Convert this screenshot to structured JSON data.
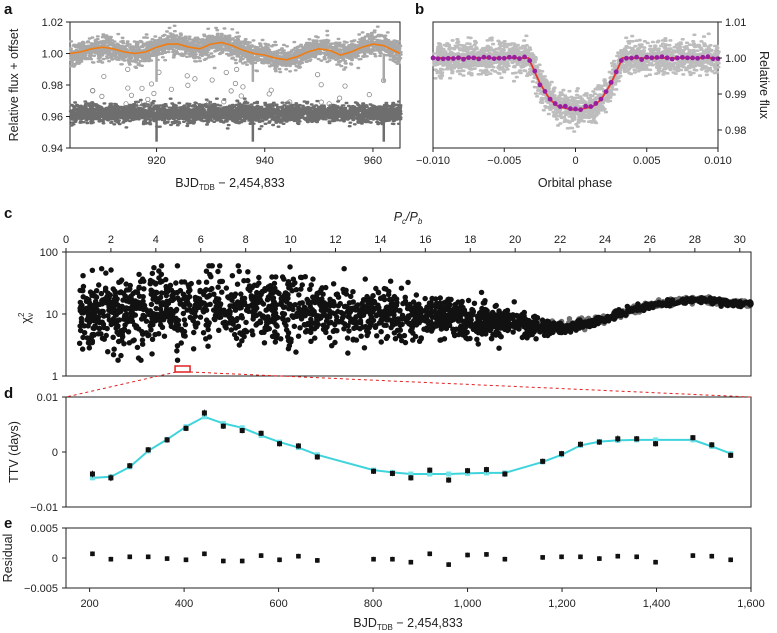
{
  "chart_data": [
    {
      "id": "a",
      "type": "scatter",
      "panel_label": "a",
      "xlabel": "BJD",
      "xlabel_sub": "TDB",
      "xlabel_suffix": " − 2,454,833",
      "ylabel": "Relative flux + offset",
      "xlim": [
        904,
        965
      ],
      "ylim": [
        0.94,
        1.02
      ],
      "xticks": [
        920,
        940,
        960
      ],
      "yticks": [
        0.94,
        0.96,
        0.98,
        1.0,
        1.02
      ],
      "yticklabels": [
        "0.94",
        "0.96",
        "0.98",
        "1.00",
        "1.02"
      ],
      "colors": {
        "data": "#a8a8a8",
        "detrended": "#6e6e6e",
        "model": "#f07c12"
      },
      "series": [
        {
          "values": {
            "x": [
              904,
              906,
              908,
              910,
              912,
              914,
              916,
              918,
              920,
              922,
              924,
              926,
              928,
              930,
              932,
              934,
              936,
              938,
              940,
              942,
              944,
              946,
              948,
              950,
              952,
              954,
              956,
              958,
              960,
              962,
              965
            ],
            "y": [
              1.0,
              1.001,
              1.003,
              1.004,
              1.003,
              1.001,
              1.0,
              1.001,
              1.004,
              1.006,
              1.006,
              1.004,
              1.003,
              1.006,
              1.007,
              1.005,
              1.002,
              1.0,
              0.999,
              0.997,
              0.996,
              0.998,
              1.001,
              1.003,
              1.002,
              0.999,
              1.001,
              1.004,
              1.006,
              1.005,
              1.0
            ]
          }
        },
        {
          "values": {
            "y_level": 0.962
          }
        },
        {
          "values": {
            "transit_times": [
              920.0,
              937.8,
              962.0
            ]
          }
        }
      ]
    },
    {
      "id": "b",
      "type": "line",
      "panel_label": "b",
      "xlabel": "Orbital phase",
      "ylabel": "Relative flux",
      "xlim": [
        -0.01,
        0.01
      ],
      "ylim": [
        0.975,
        1.01
      ],
      "xticks": [
        -0.01,
        -0.005,
        0,
        0.005,
        0.01
      ],
      "xticklabels": [
        "−0.010",
        "−0.005",
        "0",
        "0.005",
        "0.010"
      ],
      "yticks": [
        0.98,
        0.99,
        1.0,
        1.01
      ],
      "yticklabels": [
        "0.98",
        "0.99",
        "1.00",
        "1.01"
      ],
      "colors": {
        "band": "#bdbdbd",
        "model": "#e8322e",
        "binned": "#9a1fa0"
      },
      "series": [
        {
          "values": {
            "x": [
              -0.01,
              -0.0033,
              -0.0025,
              -0.0018,
              -0.0012,
              0,
              0.0012,
              0.0018,
              0.0025,
              0.0033,
              0.01
            ],
            "y": [
              1.0,
              1.0,
              0.993,
              0.9885,
              0.9865,
              0.9855,
              0.9865,
              0.9885,
              0.993,
              1.0,
              1.0
            ]
          }
        }
      ]
    },
    {
      "id": "c",
      "type": "scatter",
      "panel_label": "c",
      "xlabel_top": "P",
      "xlabel_top_sub1": "c",
      "xlabel_top_mid": "/P",
      "xlabel_top_sub2": "b",
      "ylabel": "χ",
      "ylabel_sub": "ν",
      "ylabel_sup": "2",
      "xlim": [
        0,
        30.5
      ],
      "ylim_log": [
        1,
        100
      ],
      "yscale": "log",
      "xticks": [
        0,
        2,
        4,
        6,
        8,
        10,
        12,
        14,
        16,
        18,
        20,
        22,
        24,
        26,
        28,
        30
      ],
      "yticks": [
        1,
        10,
        100
      ],
      "yticklabels": [
        "1",
        "10",
        "100"
      ],
      "colors": {
        "points": "#111111",
        "points_light": "#707070",
        "highlight": "#e02020"
      },
      "highlight_x_range": [
        4.9,
        5.3
      ],
      "series": [
        {
          "values": {
            "x": [
              0.5,
              2,
              4,
              6,
              8,
              10,
              12,
              14,
              16,
              18,
              20,
              22,
              24,
              26,
              28,
              30
            ],
            "y_center": [
              9,
              10,
              12,
              13,
              13,
              12,
              11,
              11,
              9,
              8,
              7,
              6,
              8,
              14,
              17,
              15
            ],
            "y_spread": [
              0.55,
              0.6,
              0.65,
              0.6,
              0.6,
              0.55,
              0.55,
              0.5,
              0.4,
              0.35,
              0.25,
              0.1,
              0.08,
              0.06,
              0.05,
              0.05
            ]
          }
        }
      ]
    },
    {
      "id": "d",
      "type": "line",
      "panel_label": "d",
      "ylabel": "TTV (days)",
      "xlim": [
        150,
        1600
      ],
      "ylim": [
        -0.01,
        0.01
      ],
      "yticks": [
        -0.01,
        0,
        0.01
      ],
      "yticklabels": [
        "−0.01",
        "0",
        "0.01"
      ],
      "colors": {
        "model": "#3fd4dc",
        "model_points": "#6fe3ea",
        "data": "#111111"
      },
      "series": [
        {
          "values": {
            "x": [
              206,
              245,
              285,
              324,
              364,
              404,
              443,
              483,
              523,
              563,
              602,
              642,
              682,
              801,
              841,
              880,
              920,
              960,
              1000,
              1040,
              1079,
              1159,
              1199,
              1239,
              1279,
              1318,
              1358,
              1398,
              1477,
              1517,
              1557
            ],
            "y": [
              -0.0047,
              -0.0045,
              -0.0027,
              0.0002,
              0.0023,
              0.0046,
              0.0064,
              0.0052,
              0.0044,
              0.003,
              0.0018,
              0.0008,
              -0.0005,
              -0.0033,
              -0.0037,
              -0.004,
              -0.004,
              -0.004,
              -0.0039,
              -0.0038,
              -0.0038,
              -0.0018,
              -0.0005,
              0.0012,
              0.0019,
              0.0021,
              0.0022,
              0.0022,
              0.0022,
              0.001,
              -0.0003
            ]
          }
        },
        {
          "values": {
            "x": [
              206,
              245,
              285,
              324,
              364,
              404,
              443,
              483,
              523,
              563,
              602,
              642,
              682,
              801,
              841,
              880,
              920,
              960,
              1000,
              1040,
              1079,
              1159,
              1199,
              1239,
              1279,
              1318,
              1358,
              1398,
              1477,
              1517,
              1557
            ],
            "y": [
              -0.004,
              -0.0047,
              -0.0025,
              0.0004,
              0.0022,
              0.0043,
              0.0071,
              0.0047,
              0.0039,
              0.0034,
              0.0015,
              0.0011,
              -0.0009,
              -0.0035,
              -0.0039,
              -0.0047,
              -0.0033,
              -0.0051,
              -0.0034,
              -0.0032,
              -0.004,
              -0.0017,
              -0.0003,
              0.0014,
              0.0018,
              0.0024,
              0.0024,
              0.0015,
              0.0026,
              0.0013,
              -0.0006
            ],
            "err": [
              0.0006,
              0.0006,
              0.0005,
              0.0005,
              0.0005,
              0.0005,
              0.0006,
              0.0005,
              0.0005,
              0.0005,
              0.0005,
              0.0005,
              0.0005,
              0.0005,
              0.0005,
              0.0005,
              0.0005,
              0.0005,
              0.0005,
              0.0005,
              0.0005,
              0.0005,
              0.0005,
              0.0005,
              0.0005,
              0.0006,
              0.0005,
              0.0005,
              0.0005,
              0.0005,
              0.0005
            ]
          }
        }
      ]
    },
    {
      "id": "e",
      "type": "scatter",
      "panel_label": "e",
      "ylabel": "Residual",
      "xlabel": "BJD",
      "xlabel_sub": "TDB",
      "xlabel_suffix": " − 2,454,833",
      "xlim": [
        150,
        1600
      ],
      "ylim": [
        -0.005,
        0.005
      ],
      "xticks": [
        200,
        400,
        600,
        800,
        1000,
        1200,
        1400,
        1600
      ],
      "xticklabels": [
        "200",
        "400",
        "600",
        "800",
        "1,000",
        "1,200",
        "1,400",
        "1,600"
      ],
      "yticks": [
        -0.005,
        0,
        0.005
      ],
      "yticklabels": [
        "−0.005",
        "0",
        "0.005"
      ],
      "colors": {
        "data": "#111111"
      },
      "series": [
        {
          "values": {
            "x": [
              206,
              245,
              285,
              324,
              364,
              404,
              443,
              483,
              523,
              563,
              602,
              642,
              682,
              801,
              841,
              880,
              920,
              960,
              1000,
              1040,
              1079,
              1159,
              1199,
              1239,
              1279,
              1318,
              1358,
              1398,
              1477,
              1517,
              1557
            ],
            "y": [
              0.0007,
              -0.0002,
              0.0002,
              0.0002,
              -0.0001,
              -0.0003,
              0.0007,
              -0.0005,
              -0.0005,
              0.0004,
              -0.0003,
              0.0003,
              -0.0004,
              -0.0002,
              -0.0002,
              -0.0007,
              0.0007,
              -0.0011,
              0.0005,
              0.0006,
              -0.0002,
              0.0001,
              0.0002,
              0.0002,
              -0.0001,
              0.0003,
              0.0002,
              -0.0007,
              0.0004,
              0.0003,
              -0.0003
            ]
          }
        }
      ]
    }
  ]
}
